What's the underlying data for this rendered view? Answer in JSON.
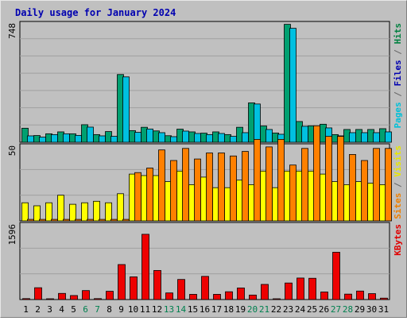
{
  "chart_data": {
    "type": "bar",
    "title": "Daily usage for January 2024",
    "categories": [
      "1",
      "2",
      "3",
      "4",
      "5",
      "6",
      "7",
      "8",
      "9",
      "10",
      "11",
      "12",
      "13",
      "14",
      "15",
      "16",
      "17",
      "18",
      "19",
      "20",
      "21",
      "22",
      "23",
      "24",
      "25",
      "26",
      "27",
      "28",
      "29",
      "30",
      "31"
    ],
    "weekend_days": [
      "6",
      "7",
      "13",
      "14",
      "20",
      "21",
      "27",
      "28"
    ],
    "panels": [
      {
        "id": "hits_panel",
        "ymax_label": "748",
        "ymax": 748,
        "right_label": [
          {
            "text": "Pages",
            "color": "#00c0d8"
          },
          {
            "text": " / ",
            "color": "#666666"
          },
          {
            "text": "Files",
            "color": "#0000b0"
          },
          {
            "text": " / ",
            "color": "#666666"
          },
          {
            "text": "Hits",
            "color": "#008040"
          }
        ],
        "series": [
          {
            "name": "Hits",
            "color": "#00a070",
            "values": [
              88,
              42,
              53,
              65,
              53,
              110,
              48,
              67,
              425,
              73,
              94,
              71,
              41,
              82,
              65,
              57,
              65,
              48,
              94,
              247,
              102,
              58,
              740,
              130,
              103,
              113,
              48,
              80,
              80,
              80,
              85
            ]
          },
          {
            "name": "Files",
            "color": "#00c0e0",
            "values": [
              40,
              32,
              48,
              53,
              43,
              95,
              40,
              37,
              410,
              62,
              83,
              60,
              35,
              70,
              55,
              48,
              55,
              37,
              60,
              240,
              80,
              50,
              715,
              100,
              80,
              90,
              40,
              60,
              60,
              60,
              65
            ]
          }
        ]
      },
      {
        "id": "visits_panel",
        "ymax_label": "50",
        "ymax": 50,
        "right_label": [
          {
            "text": "Sites",
            "color": "#f08000"
          },
          {
            "text": " / ",
            "color": "#666666"
          },
          {
            "text": "Visits",
            "color": "#e8e800"
          }
        ],
        "series": [
          {
            "name": "Visits",
            "color": "#ffff00",
            "values": [
              12,
              10,
              12,
              17,
              11,
              12,
              13,
              12,
              18,
              31,
              30,
              30,
              26,
              33,
              24,
              29,
              22,
              22,
              27,
              24,
              33,
              22,
              33,
              33,
              33,
              31,
              26,
              24,
              26,
              25,
              24
            ]
          },
          {
            "name": "Sites",
            "color": "#ff8000",
            "values": [
              1,
              1,
              1,
              1,
              1,
              1,
              1,
              1,
              1,
              32,
              35,
              47,
              40,
              48,
              41,
              45,
              45,
              43,
              46,
              54,
              49,
              54,
              37,
              48,
              63,
              56,
              56,
              44,
              40,
              48,
              48
            ]
          }
        ]
      },
      {
        "id": "kbytes_panel",
        "ymax_label": "1596",
        "ymax": 1596,
        "right_label": [
          {
            "text": "KBytes",
            "color": "#e00000"
          }
        ],
        "series": [
          {
            "name": "KBytes",
            "color": "#ee0000",
            "values": [
              20,
              250,
              15,
              130,
              85,
              190,
              20,
              175,
              740,
              480,
              1380,
              615,
              140,
              425,
              110,
              490,
              110,
              165,
              245,
              95,
              320,
              15,
              350,
              455,
              450,
              160,
              1000,
              115,
              180,
              125,
              30
            ]
          }
        ]
      }
    ]
  }
}
